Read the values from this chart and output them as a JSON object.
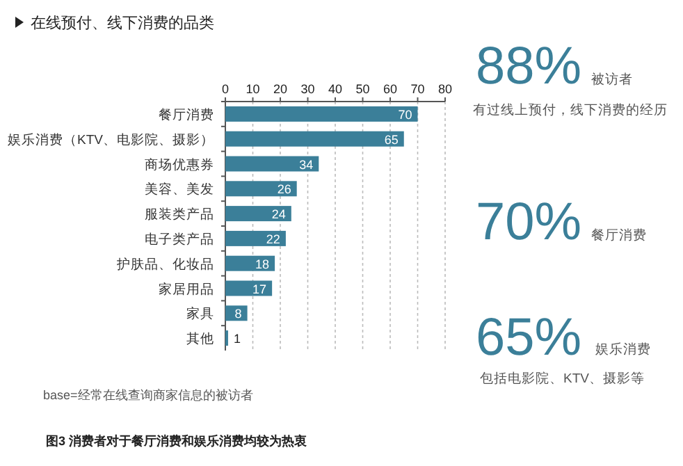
{
  "chart_data": [
    {
      "type": "bar",
      "orientation": "horizontal",
      "title": "在线预付、线下消费的品类",
      "categories": [
        "餐厅消费",
        "娱乐消费（KTV、电影院、摄影）",
        "商场优惠券",
        "美容、美发",
        "服装类产品",
        "电子类产品",
        "护肤品、化妆品",
        "家居用品",
        "家具",
        "其他"
      ],
      "values": [
        70,
        65,
        34,
        26,
        24,
        22,
        18,
        17,
        8,
        1
      ],
      "color": "#3b7f99",
      "xlim": [
        0,
        80
      ],
      "xticks": [
        0,
        10,
        20,
        30,
        40,
        50,
        60,
        70,
        80
      ],
      "grid": "x",
      "data_labels": true,
      "annotations": [
        "base=经常在线查询商家信息的被访者",
        "图3  消费者对于餐厅消费和娱乐消费均较为热衷"
      ]
    },
    {
      "type": "other",
      "annotations": [
        "88%",
        "被访者",
        "有过线上预付，线下消费的经历",
        "70%",
        "餐厅消费",
        "65%",
        "娱乐消费",
        "包括电影院、KTV、摄影等"
      ]
    }
  ]
}
